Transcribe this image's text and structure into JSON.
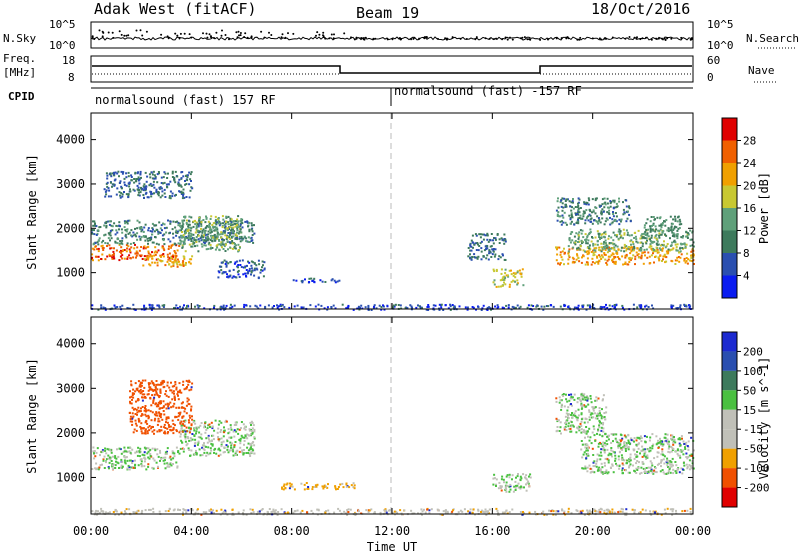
{
  "header": {
    "station": "Adak West (fitACF)",
    "beam": "Beam 19",
    "date": "18/Oct/2016"
  },
  "panels": {
    "nsky_label": "N.Sky",
    "nsearch_label": "N.Search",
    "freq_label_line1": "Freq.",
    "freq_label_line2": "[MHz]",
    "nave_label": "Nave",
    "cpid_label": "CPID",
    "nsky_ticks": [
      "10^5",
      "10^0"
    ],
    "nsearch_ticks": [
      "10^5",
      "10^0"
    ],
    "freq_ticks": [
      "18",
      "8"
    ],
    "nave_ticks": [
      "60",
      "0"
    ],
    "cpid_segments": [
      "normalsound (fast) 157 RF",
      "normalsound (fast) -157 RF"
    ]
  },
  "colors": {
    "power": [
      "#0a1cf0",
      "#2a4fb0",
      "#3d7a5c",
      "#5fa07a",
      "#c8c832",
      "#f0a000",
      "#f06000",
      "#e00000"
    ],
    "velocity": [
      "#e00000",
      "#f05000",
      "#f0a000",
      "#c0c0b8",
      "#c0c0b8",
      "#4ac040",
      "#3d7a5c",
      "#2a4fb0",
      "#1c2ad0"
    ]
  },
  "chart_data": [
    {
      "type": "heatmap",
      "name": "power",
      "title": "",
      "xlabel": "Time UT",
      "ylabel": "Slant Range [km]",
      "xlim": [
        0,
        24
      ],
      "ylim": [
        180,
        4600
      ],
      "xticks": [
        "00:00",
        "04:00",
        "08:00",
        "12:00",
        "16:00",
        "20:00",
        "00:00"
      ],
      "yticks": [
        1000,
        2000,
        3000,
        4000
      ],
      "colorbar": {
        "label": "Power [dB]",
        "ticks": [
          4,
          8,
          12,
          16,
          20,
          24,
          28
        ],
        "range": [
          0,
          32
        ]
      },
      "regions": [
        {
          "t0": 0.0,
          "t1": 3.5,
          "r0": 1300,
          "r1": 1650,
          "level": 26
        },
        {
          "t0": 2.0,
          "t1": 4.0,
          "r0": 1150,
          "r1": 1400,
          "level": 22
        },
        {
          "t0": 0.0,
          "t1": 6.5,
          "r0": 1650,
          "r1": 2200,
          "level": 10
        },
        {
          "t0": 3.5,
          "t1": 6.0,
          "r0": 1500,
          "r1": 2300,
          "level": 14
        },
        {
          "t0": 0.5,
          "t1": 4.0,
          "r0": 2700,
          "r1": 3300,
          "level": 8
        },
        {
          "t0": 5.0,
          "t1": 7.0,
          "r0": 900,
          "r1": 1300,
          "level": 6
        },
        {
          "t0": 8.0,
          "t1": 10.0,
          "r0": 800,
          "r1": 900,
          "level": 6
        },
        {
          "t0": 16.0,
          "t1": 17.2,
          "r0": 700,
          "r1": 1100,
          "level": 18
        },
        {
          "t0": 15.0,
          "t1": 16.5,
          "r0": 1300,
          "r1": 1900,
          "level": 8
        },
        {
          "t0": 18.5,
          "t1": 24.0,
          "r0": 1200,
          "r1": 1600,
          "level": 22
        },
        {
          "t0": 19.0,
          "t1": 24.0,
          "r0": 1500,
          "r1": 2000,
          "level": 14
        },
        {
          "t0": 18.5,
          "t1": 21.5,
          "r0": 2100,
          "r1": 2700,
          "level": 10
        },
        {
          "t0": 22.0,
          "t1": 23.5,
          "r0": 1800,
          "r1": 2300,
          "level": 12
        },
        {
          "t0": 0.0,
          "t1": 24.0,
          "r0": 180,
          "r1": 300,
          "level": 5
        }
      ]
    },
    {
      "type": "heatmap",
      "name": "velocity",
      "title": "",
      "xlabel": "Time UT",
      "ylabel": "Slant Range [km]",
      "xlim": [
        0,
        24
      ],
      "ylim": [
        180,
        4600
      ],
      "xticks": [
        "00:00",
        "04:00",
        "08:00",
        "12:00",
        "16:00",
        "20:00",
        "00:00"
      ],
      "yticks": [
        1000,
        2000,
        3000,
        4000
      ],
      "colorbar": {
        "label": "Velocity [m s^-1]",
        "ticks": [
          200,
          100,
          50,
          15,
          -15,
          -50,
          -100,
          -200
        ]
      },
      "regions": [
        {
          "t0": 0.0,
          "t1": 3.5,
          "r0": 1200,
          "r1": 1700,
          "level": 0
        },
        {
          "t0": 3.5,
          "t1": 6.5,
          "r0": 1500,
          "r1": 2300,
          "level": 0
        },
        {
          "t0": 1.5,
          "t1": 4.0,
          "r0": 2000,
          "r1": 3200,
          "level": -150
        },
        {
          "t0": 7.5,
          "t1": 10.5,
          "r0": 750,
          "r1": 900,
          "level": -60
        },
        {
          "t0": 16.0,
          "t1": 17.5,
          "r0": 700,
          "r1": 1100,
          "level": 0
        },
        {
          "t0": 19.5,
          "t1": 24.0,
          "r0": 1100,
          "r1": 2000,
          "level": 0
        },
        {
          "t0": 18.5,
          "t1": 20.5,
          "r0": 2000,
          "r1": 2900,
          "level": 0
        },
        {
          "t0": 0.0,
          "t1": 24.0,
          "r0": 180,
          "r1": 320,
          "level": -40
        }
      ]
    }
  ]
}
